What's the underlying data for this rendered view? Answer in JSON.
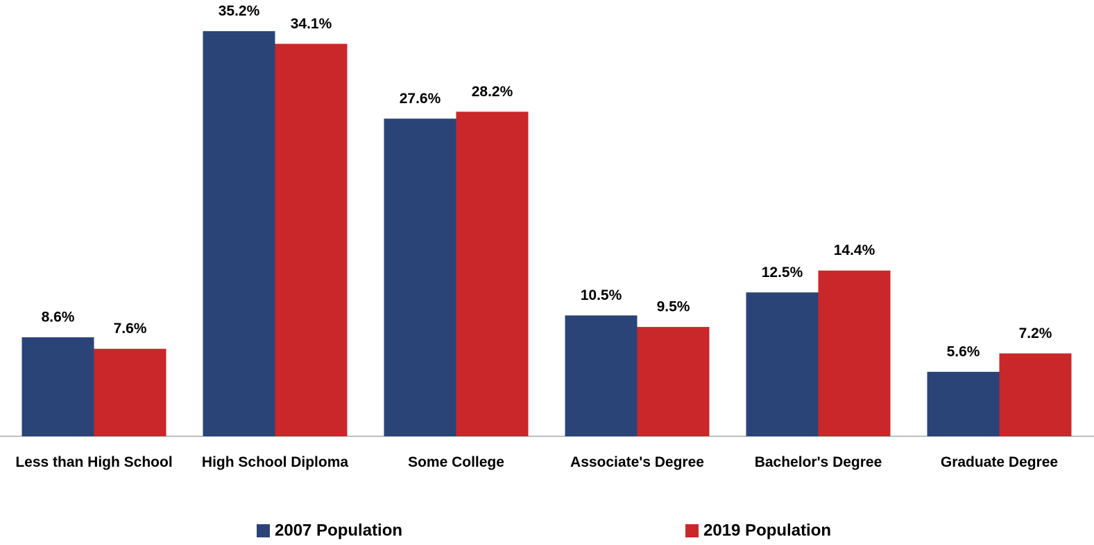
{
  "chart_data": {
    "type": "bar",
    "categories": [
      "Less than High School",
      "High School Diploma",
      "Some College",
      "Associate's Degree",
      "Bachelor's Degree",
      "Graduate Degree"
    ],
    "series": [
      {
        "name": "2007 Population",
        "color": "#2a4478",
        "values": [
          8.6,
          35.2,
          27.6,
          10.5,
          12.5,
          5.6
        ],
        "value_labels": [
          "8.6%",
          "35.2%",
          "27.6%",
          "10.5%",
          "12.5%",
          "5.6%"
        ]
      },
      {
        "name": "2019 Population",
        "color": "#c9272a",
        "values": [
          7.6,
          34.1,
          28.2,
          9.5,
          14.4,
          7.2
        ],
        "value_labels": [
          "7.6%",
          "34.1%",
          "28.2%",
          "9.5%",
          "14.4%",
          "7.2%"
        ]
      }
    ],
    "legend": "bottom"
  }
}
